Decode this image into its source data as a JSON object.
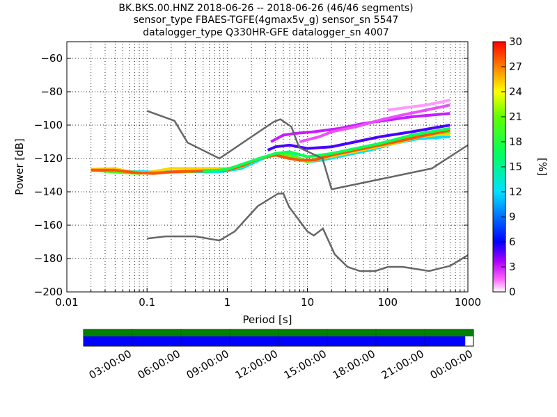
{
  "title_lines": [
    "BK.BKS.00.HNZ   2018-06-26 -- 2018-06-26  (46/46 segments)",
    "sensor_type FBAES-TGFE(4gmax5v_g) sensor_sn 5547",
    "datalogger_type Q330HR-GFE datalogger_sn 4007"
  ],
  "chart_data": {
    "type": "heatmap",
    "xlabel": "Period [s]",
    "ylabel": "Power [dB]",
    "xscale": "log",
    "xlim": [
      0.01,
      1000
    ],
    "ylim": [
      -200,
      -50
    ],
    "xticks": [
      {
        "value": 0.01,
        "label": "0.01"
      },
      {
        "value": 0.1,
        "label": "0.1"
      },
      {
        "value": 1,
        "label": "1"
      },
      {
        "value": 10,
        "label": "10"
      },
      {
        "value": 100,
        "label": "100"
      },
      {
        "value": 1000,
        "label": "1000"
      }
    ],
    "yticks": [
      {
        "value": -60,
        "label": "−60"
      },
      {
        "value": -80,
        "label": "−80"
      },
      {
        "value": -100,
        "label": "−100"
      },
      {
        "value": -120,
        "label": "−120"
      },
      {
        "value": -140,
        "label": "−140"
      },
      {
        "value": -160,
        "label": "−160"
      },
      {
        "value": -180,
        "label": "−180"
      },
      {
        "value": -200,
        "label": "−200"
      }
    ],
    "grid": true,
    "colorbar": {
      "label": "[%]",
      "min": 0,
      "max": 30,
      "ticks": [
        "0",
        "3",
        "6",
        "9",
        "12",
        "15",
        "18",
        "21",
        "24",
        "27",
        "30"
      ]
    },
    "high_noise_model": [
      [
        0.1,
        -91.5
      ],
      [
        0.22,
        -97.4
      ],
      [
        0.32,
        -110.5
      ],
      [
        0.8,
        -120
      ],
      [
        3.8,
        -98
      ],
      [
        4.6,
        -96.5
      ],
      [
        6.3,
        -101
      ],
      [
        7.9,
        -113.5
      ],
      [
        15.4,
        -120
      ],
      [
        20,
        -138.5
      ],
      [
        354.8,
        -126
      ],
      [
        1000,
        -112
      ]
    ],
    "low_noise_model": [
      [
        0.1,
        -168
      ],
      [
        0.17,
        -166.7
      ],
      [
        0.4,
        -166.7
      ],
      [
        0.8,
        -169.2
      ],
      [
        1.24,
        -163.7
      ],
      [
        2.4,
        -148.6
      ],
      [
        4.3,
        -141.1
      ],
      [
        5,
        -141
      ],
      [
        5.9,
        -149
      ],
      [
        10,
        -163.8
      ],
      [
        12,
        -166.2
      ],
      [
        15.6,
        -162
      ],
      [
        21.9,
        -177.5
      ],
      [
        31.6,
        -185
      ],
      [
        45,
        -187.5
      ],
      [
        70,
        -187.5
      ],
      [
        101,
        -185
      ],
      [
        154,
        -185
      ],
      [
        328,
        -187.5
      ],
      [
        600,
        -184.4
      ],
      [
        1000,
        -178
      ]
    ],
    "density_bands": [
      {
        "pct": 12,
        "points": [
          [
            0.02,
            -127
          ],
          [
            0.05,
            -127.8
          ],
          [
            0.1,
            -128
          ],
          [
            0.3,
            -128
          ],
          [
            0.8,
            -128
          ],
          [
            1.5,
            -126
          ],
          [
            2.5,
            -121
          ],
          [
            4,
            -117
          ],
          [
            6,
            -117
          ],
          [
            8,
            -120
          ],
          [
            10,
            -122
          ],
          [
            15,
            -121
          ],
          [
            30,
            -118
          ],
          [
            60,
            -115
          ],
          [
            120,
            -111
          ],
          [
            250,
            -108
          ],
          [
            600,
            -107
          ]
        ]
      },
      {
        "pct": 25,
        "points": [
          [
            0.02,
            -126.5
          ],
          [
            0.04,
            -126
          ],
          [
            0.06,
            -128
          ],
          [
            0.1,
            -128.5
          ],
          [
            0.2,
            -126
          ],
          [
            0.5,
            -126
          ],
          [
            1,
            -126
          ],
          [
            1.5,
            -125
          ],
          [
            2.5,
            -120
          ],
          [
            4,
            -118
          ],
          [
            6,
            -119
          ],
          [
            8,
            -121
          ],
          [
            10,
            -122
          ],
          [
            15,
            -120
          ],
          [
            30,
            -117
          ],
          [
            60,
            -114
          ],
          [
            120,
            -111
          ],
          [
            250,
            -107
          ],
          [
            600,
            -105
          ]
        ]
      },
      {
        "pct": 20,
        "points": [
          [
            0.02,
            -127
          ],
          [
            0.05,
            -128.5
          ],
          [
            0.08,
            -129
          ],
          [
            0.1,
            -128.5
          ],
          [
            0.3,
            -128
          ],
          [
            0.8,
            -127
          ],
          [
            1.5,
            -125
          ],
          [
            2.5,
            -120
          ],
          [
            4,
            -118
          ],
          [
            6,
            -118
          ],
          [
            8,
            -120
          ],
          [
            10,
            -122
          ],
          [
            15,
            -119
          ],
          [
            30,
            -116
          ],
          [
            60,
            -113
          ],
          [
            120,
            -110
          ],
          [
            250,
            -106
          ],
          [
            600,
            -104
          ]
        ]
      },
      {
        "pct": 28,
        "points": [
          [
            0.02,
            -127
          ],
          [
            0.04,
            -127
          ],
          [
            0.07,
            -128.5
          ],
          [
            0.12,
            -129
          ],
          [
            0.2,
            -128
          ],
          [
            0.5,
            -127.5
          ],
          [
            1,
            -127
          ],
          [
            1.6,
            -124
          ],
          [
            2.5,
            -120
          ],
          [
            4,
            -118
          ],
          [
            6,
            -120
          ],
          [
            8,
            -121
          ],
          [
            12,
            -121
          ],
          [
            20,
            -118
          ],
          [
            40,
            -115
          ],
          [
            80,
            -112
          ],
          [
            160,
            -109
          ],
          [
            300,
            -106
          ],
          [
            600,
            -103
          ]
        ]
      },
      {
        "pct": 17,
        "points": [
          [
            0.5,
            -128
          ],
          [
            1,
            -126.5
          ],
          [
            2.5,
            -120
          ],
          [
            4,
            -117
          ],
          [
            6,
            -116
          ],
          [
            10,
            -119
          ],
          [
            20,
            -117
          ],
          [
            40,
            -114
          ],
          [
            80,
            -111
          ],
          [
            200,
            -106
          ],
          [
            600,
            -102
          ]
        ]
      },
      {
        "pct": 5,
        "points": [
          [
            3.2,
            -115
          ],
          [
            4,
            -113
          ],
          [
            6,
            -112
          ],
          [
            10,
            -114
          ],
          [
            20,
            -113
          ],
          [
            40,
            -110
          ],
          [
            80,
            -107
          ],
          [
            200,
            -104
          ],
          [
            600,
            -100
          ]
        ]
      },
      {
        "pct": 3,
        "points": [
          [
            3.5,
            -110
          ],
          [
            5,
            -106
          ],
          [
            7,
            -105
          ],
          [
            12,
            -104
          ],
          [
            25,
            -102
          ],
          [
            50,
            -99
          ],
          [
            100,
            -97
          ],
          [
            200,
            -95
          ],
          [
            600,
            -93
          ]
        ]
      },
      {
        "pct": 2,
        "points": [
          [
            8,
            -110
          ],
          [
            14,
            -107
          ],
          [
            20,
            -104
          ],
          [
            40,
            -101
          ],
          [
            80,
            -97
          ],
          [
            150,
            -94
          ],
          [
            300,
            -91
          ],
          [
            600,
            -88
          ]
        ]
      },
      {
        "pct": 1,
        "points": [
          [
            100,
            -91
          ],
          [
            200,
            -89
          ],
          [
            300,
            -88
          ],
          [
            600,
            -85
          ]
        ]
      }
    ]
  },
  "time_axis": {
    "labels": [
      "03:00:00",
      "06:00:00",
      "09:00:00",
      "12:00:00",
      "15:00:00",
      "18:00:00",
      "21:00:00",
      "00:00:00"
    ],
    "coverage_fraction": 1.0,
    "data_fraction": 0.979,
    "coverage_color": "#008000",
    "data_color": "#0000ff"
  }
}
